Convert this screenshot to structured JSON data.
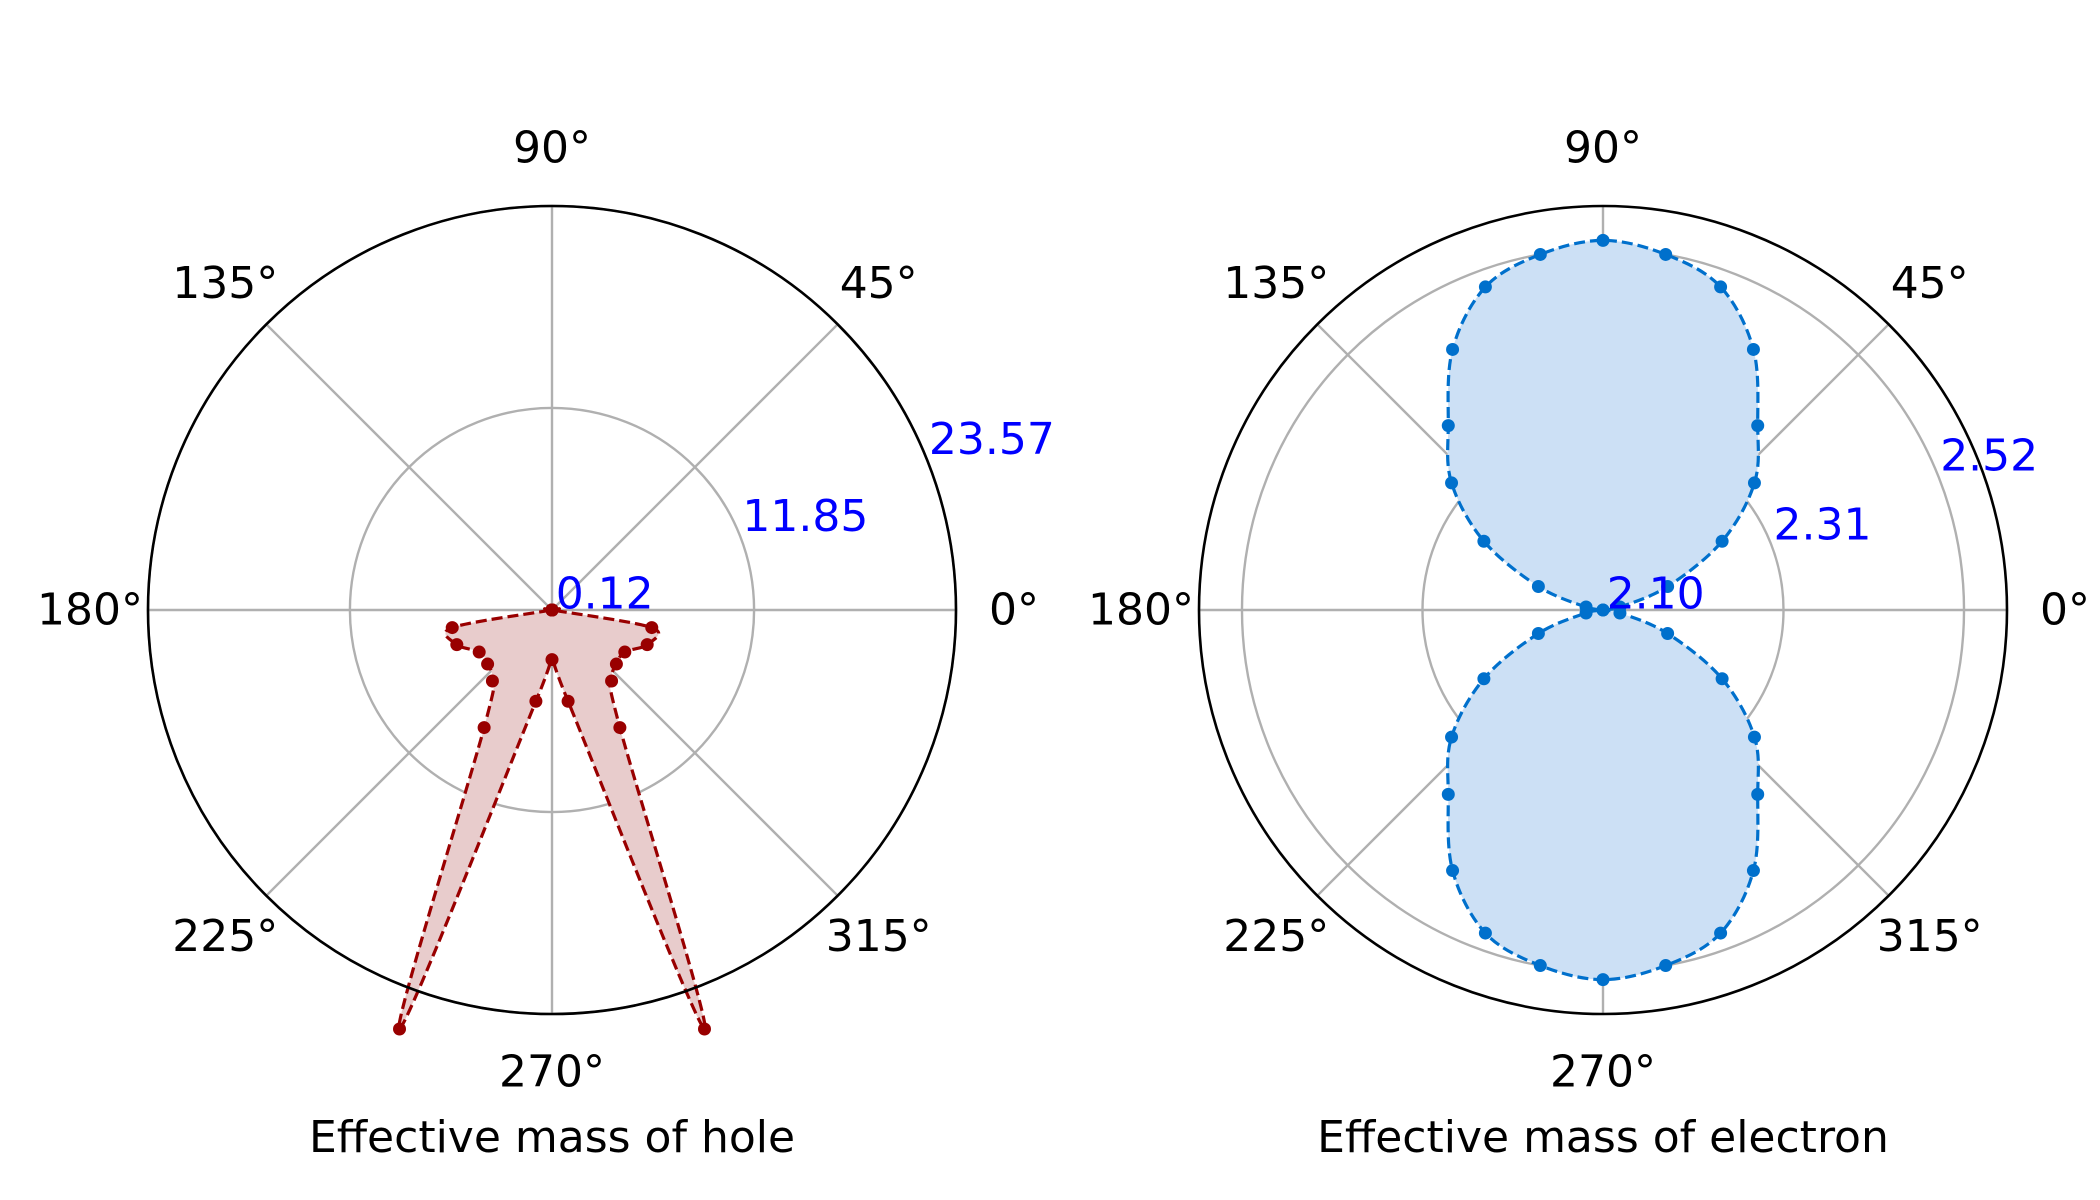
{
  "chart_data": [
    {
      "type": "polar",
      "title": "",
      "xlabel": "Effective mass of hole",
      "angle_unit": "deg",
      "angle_ticks": [
        "0°",
        "45°",
        "90°",
        "135°",
        "180°",
        "225°",
        "270°",
        "315°"
      ],
      "r_ticks": [
        "0.12",
        "11.85",
        "23.57"
      ],
      "r_tick_values": [
        0.12,
        11.85,
        23.57
      ],
      "rlim": [
        0.12,
        23.57
      ],
      "grid": true,
      "line_style": "dashed",
      "fill": true,
      "colors": {
        "line": "#990000",
        "fill": "#e8cccc",
        "r_tick": "#0000ff",
        "grid": "#b0b0b0"
      },
      "series": [
        {
          "name": "hole",
          "theta": [
            0,
            10,
            20,
            30,
            40,
            50,
            60,
            70,
            80,
            90,
            100,
            110,
            120,
            130,
            140,
            150,
            160,
            170,
            180,
            190,
            200,
            210,
            220,
            230,
            240,
            250,
            260,
            270,
            280,
            290,
            300,
            310,
            320,
            330,
            340,
            350
          ],
          "r": [
            0.12,
            0.12,
            0.12,
            0.12,
            0.12,
            0.12,
            0.12,
            0.12,
            0.12,
            0.12,
            0.12,
            0.12,
            0.12,
            0.12,
            0.12,
            0.12,
            0.12,
            0.12,
            0.12,
            6.0,
            6.0,
            5.0,
            5.0,
            5.5,
            8.0,
            26.0,
            5.5,
            3.0,
            5.5,
            26.0,
            8.0,
            5.5,
            5.0,
            5.0,
            6.0,
            6.0
          ]
        }
      ]
    },
    {
      "type": "polar",
      "title": "",
      "xlabel": "Effective mass of electron",
      "angle_unit": "deg",
      "angle_ticks": [
        "0°",
        "45°",
        "90°",
        "135°",
        "180°",
        "225°",
        "270°",
        "315°"
      ],
      "r_ticks": [
        "2.10",
        "2.31",
        "2.52"
      ],
      "r_tick_values": [
        2.1,
        2.31,
        2.52
      ],
      "rlim": [
        2.1,
        2.57
      ],
      "grid": true,
      "line_style": "dashed",
      "fill": true,
      "colors": {
        "line": "#0070cc",
        "fill": "#cce0f5",
        "r_tick": "#0000ff",
        "grid": "#b0b0b0"
      },
      "series": [
        {
          "name": "electron",
          "theta": [
            0,
            10,
            20,
            30,
            40,
            50,
            60,
            70,
            80,
            90,
            100,
            110,
            120,
            130,
            140,
            150,
            160,
            170,
            180,
            190,
            200,
            210,
            220,
            230,
            240,
            250,
            260,
            270,
            280,
            290,
            300,
            310,
            320,
            330,
            340,
            350
          ],
          "r": [
            2.1,
            2.12,
            2.18,
            2.26,
            2.33,
            2.38,
            2.45,
            2.5,
            2.52,
            2.53,
            2.52,
            2.5,
            2.45,
            2.38,
            2.33,
            2.26,
            2.18,
            2.12,
            2.1,
            2.12,
            2.18,
            2.26,
            2.33,
            2.38,
            2.45,
            2.5,
            2.52,
            2.53,
            2.52,
            2.5,
            2.45,
            2.38,
            2.33,
            2.26,
            2.18,
            2.12
          ]
        }
      ]
    }
  ]
}
